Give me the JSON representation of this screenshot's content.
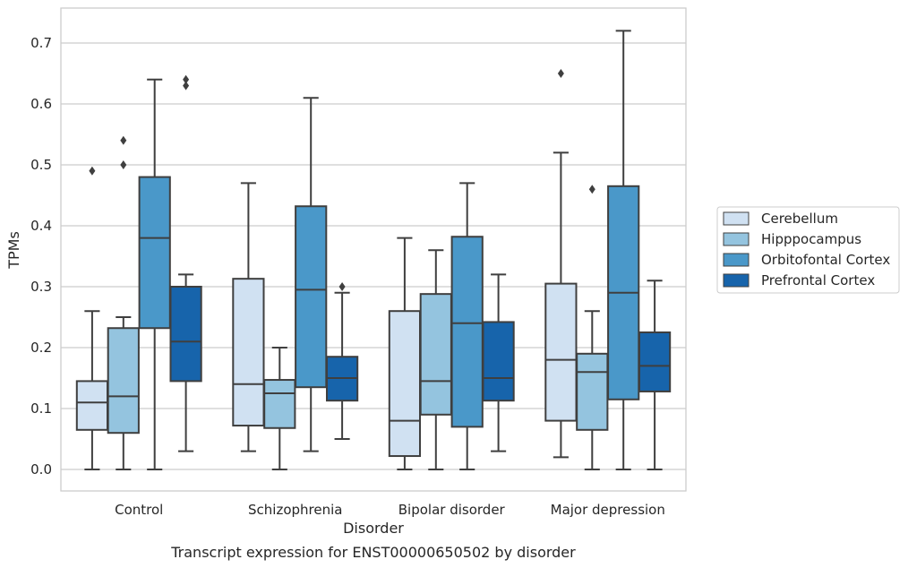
{
  "caption": "Transcript expression for ENST00000650502 by disorder",
  "chart_data": {
    "type": "box",
    "title": "",
    "xlabel": "Disorder",
    "ylabel": "TPMs",
    "ylim": [
      -0.035,
      0.76
    ],
    "yticks": [
      "0.0",
      "0.1",
      "0.2",
      "0.3",
      "0.4",
      "0.5",
      "0.6",
      "0.7"
    ],
    "grid": "horizontal",
    "legend_position": "right",
    "categories": [
      "Control",
      "Schizophrenia",
      "Bipolar disorder",
      "Major depression"
    ],
    "series": [
      {
        "name": "Cerebellum",
        "color": "#d0e1f2",
        "boxes": [
          {
            "whisker_low": 0.0,
            "q1": 0.065,
            "median": 0.11,
            "q3": 0.145,
            "whisker_high": 0.26,
            "outliers": [
              0.49
            ]
          },
          {
            "whisker_low": 0.03,
            "q1": 0.072,
            "median": 0.14,
            "q3": 0.313,
            "whisker_high": 0.47,
            "outliers": []
          },
          {
            "whisker_low": 0.0,
            "q1": 0.022,
            "median": 0.08,
            "q3": 0.26,
            "whisker_high": 0.38,
            "outliers": []
          },
          {
            "whisker_low": 0.02,
            "q1": 0.08,
            "median": 0.18,
            "q3": 0.305,
            "whisker_high": 0.52,
            "outliers": [
              0.65
            ]
          }
        ]
      },
      {
        "name": "Hipppocampus",
        "color": "#94c4df",
        "boxes": [
          {
            "whisker_low": 0.0,
            "q1": 0.06,
            "median": 0.12,
            "q3": 0.232,
            "whisker_high": 0.25,
            "outliers": [
              0.5,
              0.54
            ]
          },
          {
            "whisker_low": 0.0,
            "q1": 0.068,
            "median": 0.125,
            "q3": 0.147,
            "whisker_high": 0.2,
            "outliers": []
          },
          {
            "whisker_low": 0.0,
            "q1": 0.09,
            "median": 0.145,
            "q3": 0.288,
            "whisker_high": 0.36,
            "outliers": []
          },
          {
            "whisker_low": 0.0,
            "q1": 0.065,
            "median": 0.16,
            "q3": 0.19,
            "whisker_high": 0.26,
            "outliers": [
              0.46
            ]
          }
        ]
      },
      {
        "name": "Orbitofontal Cortex",
        "color": "#4a98c9",
        "boxes": [
          {
            "whisker_low": 0.0,
            "q1": 0.232,
            "median": 0.38,
            "q3": 0.48,
            "whisker_high": 0.64,
            "outliers": []
          },
          {
            "whisker_low": 0.03,
            "q1": 0.135,
            "median": 0.295,
            "q3": 0.432,
            "whisker_high": 0.61,
            "outliers": []
          },
          {
            "whisker_low": 0.0,
            "q1": 0.07,
            "median": 0.24,
            "q3": 0.382,
            "whisker_high": 0.47,
            "outliers": []
          },
          {
            "whisker_low": 0.0,
            "q1": 0.115,
            "median": 0.29,
            "q3": 0.465,
            "whisker_high": 0.72,
            "outliers": []
          }
        ]
      },
      {
        "name": "Prefrontal Cortex",
        "color": "#1764ab",
        "boxes": [
          {
            "whisker_low": 0.03,
            "q1": 0.145,
            "median": 0.21,
            "q3": 0.3,
            "whisker_high": 0.32,
            "outliers": [
              0.63,
              0.64
            ]
          },
          {
            "whisker_low": 0.05,
            "q1": 0.113,
            "median": 0.15,
            "q3": 0.185,
            "whisker_high": 0.29,
            "outliers": [
              0.3
            ]
          },
          {
            "whisker_low": 0.03,
            "q1": 0.113,
            "median": 0.15,
            "q3": 0.242,
            "whisker_high": 0.32,
            "outliers": []
          },
          {
            "whisker_low": 0.0,
            "q1": 0.128,
            "median": 0.17,
            "q3": 0.225,
            "whisker_high": 0.31,
            "outliers": []
          }
        ]
      }
    ]
  }
}
